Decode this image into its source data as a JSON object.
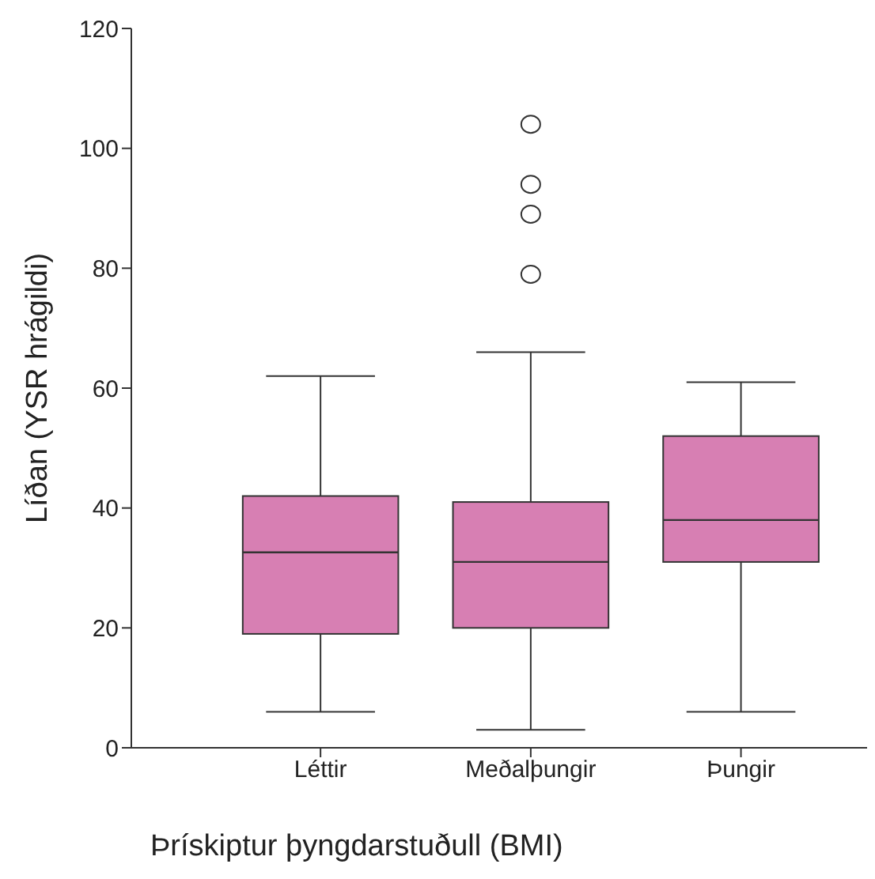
{
  "chart_data": {
    "type": "box",
    "xlabel": "Þrískiptur þyngdarstuðull (BMI)",
    "ylabel": "Líðan (YSR hrágildi)",
    "categories": [
      "Léttir",
      "Meðalþungir",
      "Þungir"
    ],
    "color": "#d77fb3",
    "boxes": [
      {
        "low": 6,
        "q1": 19,
        "median": 32.6,
        "q3": 42,
        "high": 62
      },
      {
        "low": 3,
        "q1": 20,
        "median": 31,
        "q3": 41,
        "high": 66,
        "outliers": [
          79,
          89,
          94,
          104
        ]
      },
      {
        "low": 6,
        "q1": 31,
        "median": 38,
        "q3": 52,
        "high": 61
      }
    ],
    "ylim": [
      0,
      120
    ],
    "yticks": [
      0,
      20,
      40,
      60,
      80,
      100,
      120
    ],
    "grid": false,
    "legend": false
  }
}
